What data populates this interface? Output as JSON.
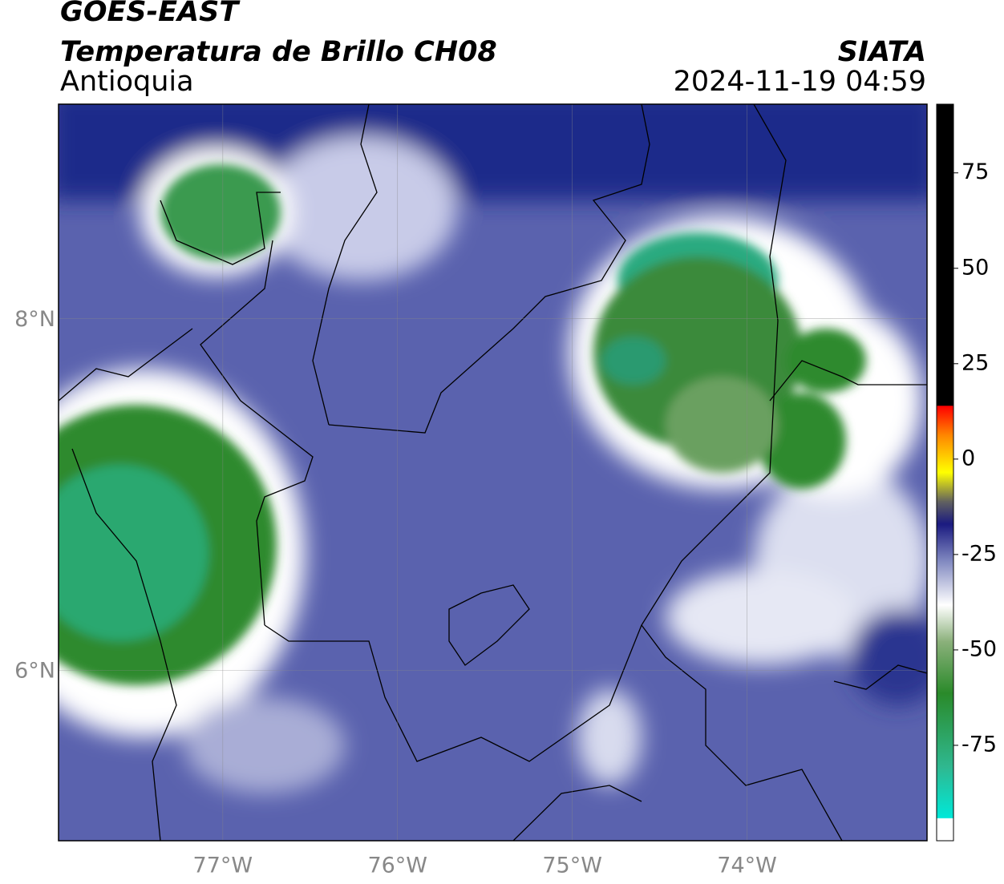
{
  "chart_data": {
    "type": "map",
    "title": "GOES-EAST",
    "subtitle": "Temperatura de Brillo CH08",
    "region": "Antioquia",
    "source": "SIATA",
    "timestamp": "2024-11-19 04:59",
    "xlim": [
      -77.94,
      -72.97
    ],
    "ylim": [
      5.03,
      9.22
    ],
    "xticks": [
      {
        "value": -77,
        "label": "77°W"
      },
      {
        "value": -76,
        "label": "76°W"
      },
      {
        "value": -75,
        "label": "75°W"
      },
      {
        "value": -74,
        "label": "74°W"
      }
    ],
    "yticks": [
      {
        "value": 6,
        "label": "6°N"
      },
      {
        "value": 8,
        "label": "8°N"
      }
    ],
    "clim": [
      -100,
      93
    ],
    "cticks": [
      75,
      50,
      25,
      0,
      -25,
      -50,
      -75
    ],
    "grid": true
  }
}
